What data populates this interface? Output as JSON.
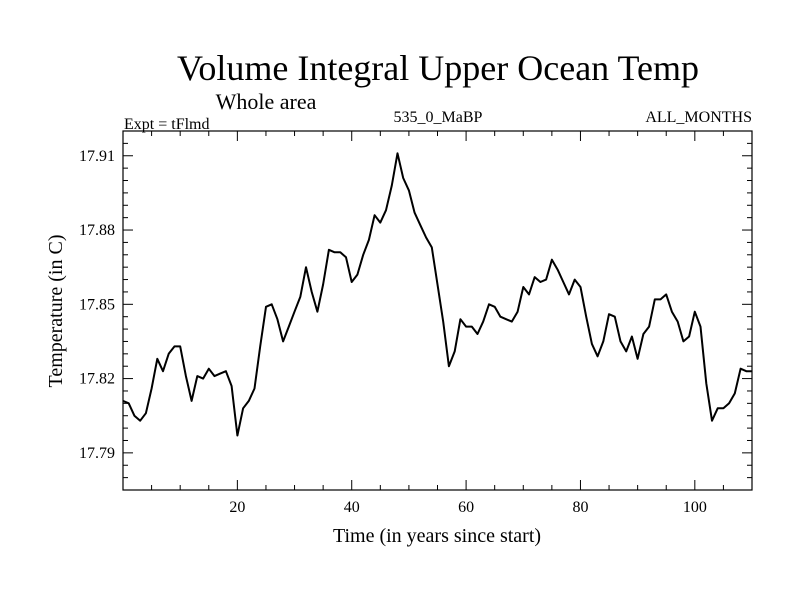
{
  "chart_data": {
    "type": "line",
    "title": "Volume Integral Upper Ocean Temp",
    "subtitle": "Whole area",
    "left_label": "Expt = tFlmd",
    "center_label": "535_0_MaBP",
    "right_label": "ALL_MONTHS",
    "xlabel": "Time (in years since start)",
    "ylabel": "Temperature (in C)",
    "xlim": [
      0,
      110
    ],
    "ylim": [
      17.775,
      17.92
    ],
    "xticks": [
      "20",
      "40",
      "60",
      "80",
      "100"
    ],
    "xtick_values": [
      20,
      40,
      60,
      80,
      100
    ],
    "yticks": [
      "17.79",
      "17.82",
      "17.85",
      "17.88",
      "17.91"
    ],
    "ytick_values": [
      17.79,
      17.82,
      17.85,
      17.88,
      17.91
    ],
    "series": [
      {
        "name": "tFlmd",
        "color": "#000000",
        "x": [
          0,
          1,
          2,
          3,
          4,
          5,
          6,
          7,
          8,
          9,
          10,
          11,
          12,
          13,
          14,
          15,
          16,
          17,
          18,
          19,
          20,
          21,
          22,
          23,
          24,
          25,
          26,
          27,
          28,
          29,
          30,
          31,
          32,
          33,
          34,
          35,
          36,
          37,
          38,
          39,
          40,
          41,
          42,
          43,
          44,
          45,
          46,
          47,
          48,
          49,
          50,
          51,
          52,
          53,
          54,
          55,
          56,
          57,
          58,
          59,
          60,
          61,
          62,
          63,
          64,
          65,
          66,
          67,
          68,
          69,
          70,
          71,
          72,
          73,
          74,
          75,
          76,
          77,
          78,
          79,
          80,
          81,
          82,
          83,
          84,
          85,
          86,
          87,
          88,
          89,
          90,
          91,
          92,
          93,
          94,
          95,
          96,
          97,
          98,
          99,
          100,
          101,
          102,
          103,
          104,
          105,
          106,
          107,
          108,
          109,
          110
        ],
        "values": [
          17.811,
          17.81,
          17.805,
          17.803,
          17.806,
          17.816,
          17.828,
          17.823,
          17.83,
          17.833,
          17.833,
          17.821,
          17.811,
          17.821,
          17.82,
          17.824,
          17.821,
          17.822,
          17.823,
          17.817,
          17.797,
          17.808,
          17.811,
          17.816,
          17.833,
          17.849,
          17.85,
          17.844,
          17.835,
          17.841,
          17.847,
          17.853,
          17.865,
          17.855,
          17.847,
          17.858,
          17.872,
          17.871,
          17.871,
          17.869,
          17.859,
          17.862,
          17.87,
          17.876,
          17.886,
          17.883,
          17.888,
          17.898,
          17.911,
          17.901,
          17.896,
          17.887,
          17.882,
          17.877,
          17.873,
          17.858,
          17.843,
          17.825,
          17.831,
          17.844,
          17.841,
          17.841,
          17.838,
          17.843,
          17.85,
          17.849,
          17.845,
          17.844,
          17.843,
          17.847,
          17.857,
          17.854,
          17.861,
          17.859,
          17.86,
          17.868,
          17.864,
          17.859,
          17.854,
          17.86,
          17.857,
          17.845,
          17.834,
          17.829,
          17.835,
          17.846,
          17.845,
          17.835,
          17.831,
          17.837,
          17.828,
          17.838,
          17.841,
          17.852,
          17.852,
          17.854,
          17.847,
          17.843,
          17.835,
          17.837,
          17.847,
          17.841,
          17.818,
          17.803,
          17.808,
          17.808,
          17.81,
          17.814,
          17.824,
          17.823,
          17.823
        ]
      }
    ]
  }
}
